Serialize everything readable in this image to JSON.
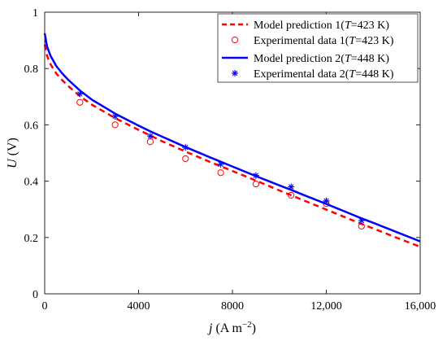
{
  "chart_data": {
    "type": "line",
    "xlabel": "j (A m⁻²)",
    "xlabel_parts": {
      "var": "j",
      "unit": " (A m",
      "exp": "−2",
      "close": ")"
    },
    "ylabel": "U (V)",
    "ylabel_parts": {
      "var": "U",
      "unit": " (V)"
    },
    "xlim": [
      0,
      16000
    ],
    "ylim": [
      0,
      1
    ],
    "xticks": [
      0,
      4000,
      8000,
      12000,
      16000
    ],
    "xtick_labels": [
      "0",
      "4000",
      "8000",
      "12,000",
      "16,000"
    ],
    "yticks": [
      0,
      0.2,
      0.4,
      0.6,
      0.8,
      1
    ],
    "ytick_labels": [
      "0",
      "0.2",
      "0.4",
      "0.6",
      "0.8",
      "1"
    ],
    "grid": false,
    "legend_position": "top-right",
    "series": [
      {
        "name": "Model prediction 1(T=423 K)",
        "legend_parts": {
          "pre": "Model prediction 1(",
          "var": "T",
          "post": "=423 K)"
        },
        "kind": "dashed-line",
        "color": "#ff0000",
        "x": [
          0,
          100,
          250,
          500,
          750,
          1000,
          1500,
          2000,
          3000,
          4000,
          4500,
          5000,
          6000,
          7000,
          7500,
          8000,
          9000,
          10000,
          10500,
          11000,
          12000,
          13000,
          13500,
          14000,
          15000,
          16000
        ],
        "y": [
          0.885,
          0.845,
          0.815,
          0.782,
          0.758,
          0.738,
          0.702,
          0.672,
          0.624,
          0.582,
          0.562,
          0.542,
          0.505,
          0.47,
          0.453,
          0.436,
          0.402,
          0.367,
          0.35,
          0.333,
          0.299,
          0.265,
          0.248,
          0.232,
          0.199,
          0.167
        ]
      },
      {
        "name": "Experimental data 1(T=423 K)",
        "legend_parts": {
          "pre": "Experimental data 1(",
          "var": "T",
          "post": "=423 K)"
        },
        "kind": "circle-markers",
        "color": "#ff0000",
        "x": [
          1500,
          3000,
          4500,
          6000,
          7500,
          9000,
          10500,
          12000,
          13500
        ],
        "y": [
          0.68,
          0.6,
          0.54,
          0.48,
          0.43,
          0.39,
          0.35,
          0.32,
          0.24
        ]
      },
      {
        "name": "Model prediction 2(T=448 K)",
        "legend_parts": {
          "pre": "Model prediction 2(",
          "var": "T",
          "post": "=448 K)"
        },
        "kind": "solid-line",
        "color": "#0000ff",
        "x": [
          0,
          100,
          250,
          500,
          750,
          1000,
          1500,
          2000,
          3000,
          4000,
          4500,
          5000,
          6000,
          7000,
          7500,
          8000,
          9000,
          10000,
          10500,
          11000,
          12000,
          13000,
          13500,
          14000,
          15000,
          16000
        ],
        "y": [
          0.925,
          0.878,
          0.845,
          0.808,
          0.782,
          0.76,
          0.722,
          0.69,
          0.64,
          0.597,
          0.577,
          0.558,
          0.521,
          0.486,
          0.469,
          0.452,
          0.418,
          0.385,
          0.369,
          0.352,
          0.319,
          0.285,
          0.268,
          0.252,
          0.219,
          0.186
        ]
      },
      {
        "name": "Experimental data 2(T=448 K)",
        "legend_parts": {
          "pre": "Experimental data 2(",
          "var": "T",
          "post": "=448 K)"
        },
        "kind": "star-markers",
        "color": "#0000ff",
        "x": [
          1500,
          3000,
          4500,
          6000,
          7500,
          9000,
          10500,
          12000,
          13500
        ],
        "y": [
          0.71,
          0.63,
          0.56,
          0.52,
          0.46,
          0.42,
          0.38,
          0.33,
          0.26
        ]
      }
    ]
  }
}
